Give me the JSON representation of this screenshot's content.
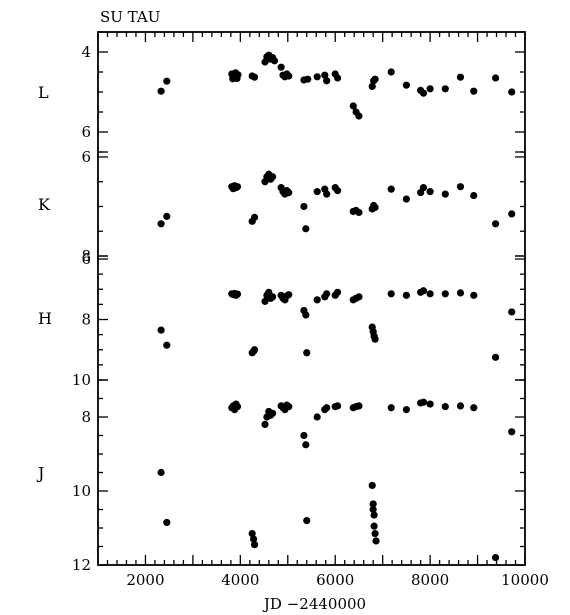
{
  "chart_data": {
    "type": "scatter",
    "title": "SU TAU",
    "xlabel": "JD −2440000",
    "xlim": [
      1000,
      10000
    ],
    "x_ticks": [
      "2000",
      "4000",
      "6000",
      "8000",
      "10000"
    ],
    "y_inverted": true,
    "grid": false,
    "panels": [
      {
        "name": "L",
        "ylim": [
          3.5,
          6.5
        ],
        "y_ticks": [
          "4",
          "6"
        ],
        "points": [
          [
            2330,
            4.98
          ],
          [
            2450,
            4.73
          ],
          [
            3820,
            4.55
          ],
          [
            3840,
            4.67
          ],
          [
            3860,
            4.58
          ],
          [
            3880,
            4.62
          ],
          [
            3900,
            4.52
          ],
          [
            3930,
            4.66
          ],
          [
            3950,
            4.57
          ],
          [
            4250,
            4.6
          ],
          [
            4300,
            4.63
          ],
          [
            4520,
            4.25
          ],
          [
            4560,
            4.12
          ],
          [
            4600,
            4.08
          ],
          [
            4640,
            4.18
          ],
          [
            4680,
            4.14
          ],
          [
            4720,
            4.22
          ],
          [
            4860,
            4.38
          ],
          [
            4900,
            4.58
          ],
          [
            4940,
            4.62
          ],
          [
            4980,
            4.55
          ],
          [
            5020,
            4.6
          ],
          [
            5340,
            4.7
          ],
          [
            5420,
            4.68
          ],
          [
            5620,
            4.62
          ],
          [
            5780,
            4.58
          ],
          [
            5820,
            4.72
          ],
          [
            6000,
            4.55
          ],
          [
            6050,
            4.65
          ],
          [
            6380,
            5.35
          ],
          [
            6440,
            5.5
          ],
          [
            6500,
            5.6
          ],
          [
            6780,
            4.86
          ],
          [
            6810,
            4.72
          ],
          [
            6840,
            4.68
          ],
          [
            7180,
            4.5
          ],
          [
            7500,
            4.83
          ],
          [
            7800,
            4.96
          ],
          [
            7860,
            5.03
          ],
          [
            8000,
            4.92
          ],
          [
            8320,
            4.92
          ],
          [
            8640,
            4.63
          ],
          [
            8920,
            4.98
          ],
          [
            9380,
            4.65
          ],
          [
            9720,
            5.0
          ]
        ]
      },
      {
        "name": "K",
        "ylim": [
          5.9,
          8.0
        ],
        "y_ticks": [
          "6",
          "8"
        ],
        "points": [
          [
            2330,
            7.35
          ],
          [
            2450,
            7.2
          ],
          [
            3820,
            6.6
          ],
          [
            3850,
            6.64
          ],
          [
            3880,
            6.58
          ],
          [
            3910,
            6.62
          ],
          [
            3940,
            6.6
          ],
          [
            4250,
            7.3
          ],
          [
            4300,
            7.22
          ],
          [
            4520,
            6.5
          ],
          [
            4560,
            6.4
          ],
          [
            4600,
            6.35
          ],
          [
            4640,
            6.45
          ],
          [
            4680,
            6.4
          ],
          [
            4860,
            6.62
          ],
          [
            4900,
            6.7
          ],
          [
            4940,
            6.75
          ],
          [
            4980,
            6.68
          ],
          [
            5020,
            6.72
          ],
          [
            5340,
            7.0
          ],
          [
            5380,
            7.45
          ],
          [
            5620,
            6.7
          ],
          [
            5780,
            6.65
          ],
          [
            5820,
            6.75
          ],
          [
            6000,
            6.62
          ],
          [
            6050,
            6.68
          ],
          [
            6380,
            7.1
          ],
          [
            6440,
            7.08
          ],
          [
            6500,
            7.12
          ],
          [
            6780,
            7.05
          ],
          [
            6810,
            6.98
          ],
          [
            6840,
            7.02
          ],
          [
            7180,
            6.65
          ],
          [
            7500,
            6.85
          ],
          [
            7800,
            6.72
          ],
          [
            7860,
            6.62
          ],
          [
            8000,
            6.7
          ],
          [
            8320,
            6.75
          ],
          [
            8640,
            6.6
          ],
          [
            8920,
            6.78
          ],
          [
            9380,
            7.35
          ],
          [
            9720,
            7.15
          ]
        ]
      },
      {
        "name": "H",
        "ylim": [
          5.9,
          10.0
        ],
        "y_ticks": [
          "6",
          "8",
          "10"
        ],
        "points": [
          [
            2330,
            8.35
          ],
          [
            2450,
            8.85
          ],
          [
            3820,
            7.15
          ],
          [
            3850,
            7.18
          ],
          [
            3880,
            7.14
          ],
          [
            3910,
            7.2
          ],
          [
            3940,
            7.16
          ],
          [
            4250,
            9.1
          ],
          [
            4280,
            9.05
          ],
          [
            4300,
            9.0
          ],
          [
            4520,
            7.4
          ],
          [
            4560,
            7.2
          ],
          [
            4600,
            7.1
          ],
          [
            4640,
            7.3
          ],
          [
            4680,
            7.25
          ],
          [
            4860,
            7.2
          ],
          [
            4900,
            7.3
          ],
          [
            4940,
            7.35
          ],
          [
            4980,
            7.22
          ],
          [
            5020,
            7.18
          ],
          [
            5340,
            7.7
          ],
          [
            5380,
            7.85
          ],
          [
            5400,
            9.1
          ],
          [
            5620,
            7.35
          ],
          [
            5780,
            7.25
          ],
          [
            5820,
            7.15
          ],
          [
            6000,
            7.2
          ],
          [
            6050,
            7.1
          ],
          [
            6380,
            7.35
          ],
          [
            6440,
            7.3
          ],
          [
            6500,
            7.25
          ],
          [
            6780,
            8.25
          ],
          [
            6800,
            8.4
          ],
          [
            6820,
            8.55
          ],
          [
            6840,
            8.65
          ],
          [
            7180,
            7.15
          ],
          [
            7500,
            7.2
          ],
          [
            7800,
            7.1
          ],
          [
            7860,
            7.05
          ],
          [
            8000,
            7.15
          ],
          [
            8320,
            7.15
          ],
          [
            8640,
            7.12
          ],
          [
            8920,
            7.2
          ],
          [
            9380,
            9.25
          ],
          [
            9720,
            7.75
          ]
        ]
      },
      {
        "name": "J",
        "ylim": [
          7.0,
          12.0
        ],
        "y_ticks": [
          "8",
          "10",
          "12"
        ],
        "points": [
          [
            2330,
            9.5
          ],
          [
            2450,
            10.85
          ],
          [
            3820,
            7.75
          ],
          [
            3850,
            7.7
          ],
          [
            3880,
            7.8
          ],
          [
            3910,
            7.65
          ],
          [
            3940,
            7.72
          ],
          [
            4250,
            11.15
          ],
          [
            4280,
            11.3
          ],
          [
            4300,
            11.45
          ],
          [
            4520,
            8.2
          ],
          [
            4560,
            8.0
          ],
          [
            4600,
            7.85
          ],
          [
            4640,
            7.95
          ],
          [
            4680,
            7.9
          ],
          [
            4860,
            7.7
          ],
          [
            4900,
            7.75
          ],
          [
            4940,
            7.8
          ],
          [
            4980,
            7.68
          ],
          [
            5020,
            7.72
          ],
          [
            5340,
            8.5
          ],
          [
            5380,
            8.75
          ],
          [
            5400,
            10.8
          ],
          [
            5620,
            8.0
          ],
          [
            5780,
            7.8
          ],
          [
            5820,
            7.75
          ],
          [
            6000,
            7.72
          ],
          [
            6050,
            7.7
          ],
          [
            6380,
            7.75
          ],
          [
            6440,
            7.72
          ],
          [
            6500,
            7.7
          ],
          [
            6780,
            9.85
          ],
          [
            6800,
            10.35
          ],
          [
            6800,
            10.5
          ],
          [
            6820,
            10.65
          ],
          [
            6820,
            10.95
          ],
          [
            6840,
            11.15
          ],
          [
            6860,
            11.35
          ],
          [
            7180,
            7.75
          ],
          [
            7500,
            7.8
          ],
          [
            7800,
            7.62
          ],
          [
            7860,
            7.6
          ],
          [
            8000,
            7.65
          ],
          [
            8320,
            7.72
          ],
          [
            8640,
            7.7
          ],
          [
            8920,
            7.75
          ],
          [
            9380,
            11.8
          ],
          [
            9720,
            8.4
          ]
        ]
      }
    ]
  }
}
